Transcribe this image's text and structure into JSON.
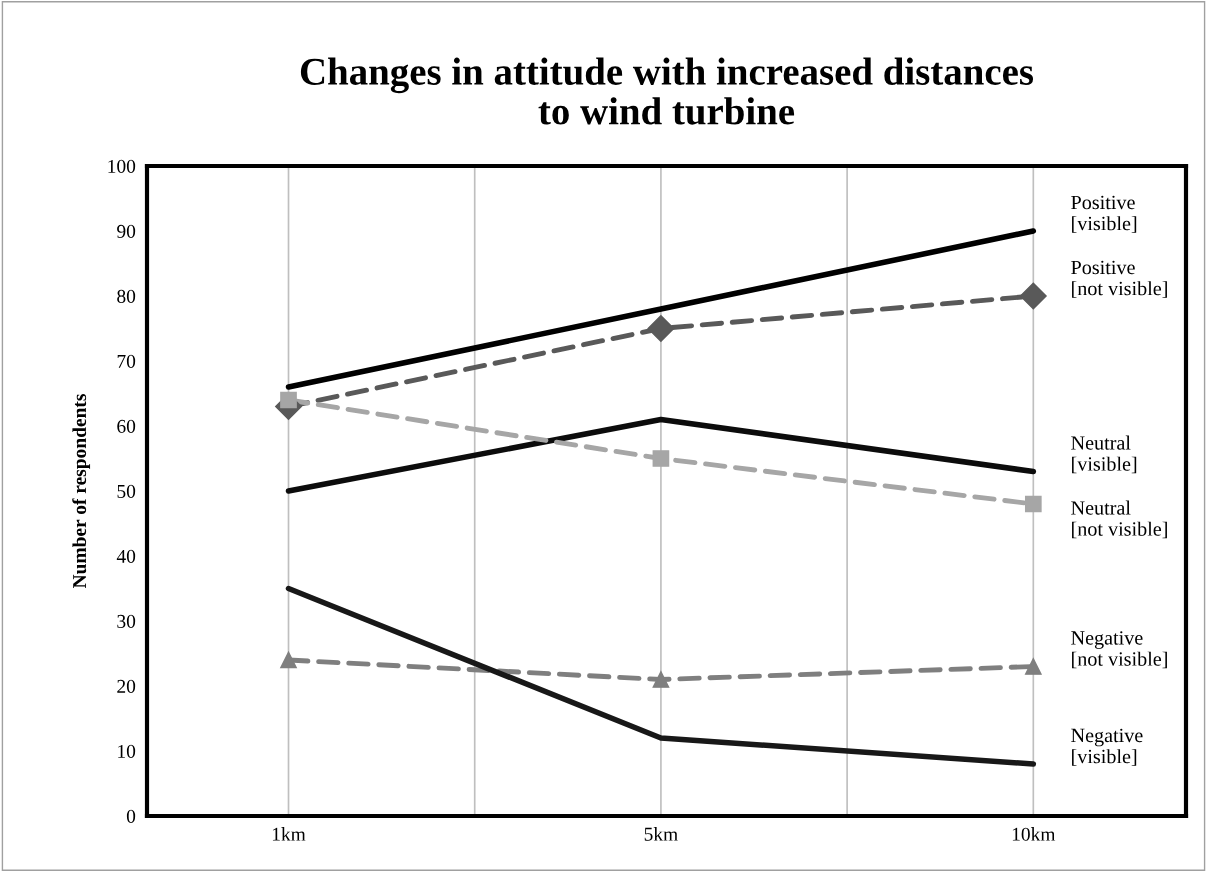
{
  "chart_data": {
    "type": "line",
    "title": "Changes in attitude with increased distances\nto wind turbine",
    "ylabel": "Number of respondents",
    "categories": [
      "1km",
      "5km",
      "10km"
    ],
    "series": [
      {
        "name": "Positive\n[visible]",
        "color": "#000000",
        "values": [
          66,
          78,
          90
        ],
        "marker": "none",
        "line_style": "solid"
      },
      {
        "name": "Positive\n[not visible]",
        "color": "#595959",
        "values": [
          63,
          75,
          80
        ],
        "marker": "diamond",
        "line_style": "dashed"
      },
      {
        "name": "Neutral\n[visible]",
        "color": "#0c0c0c",
        "values": [
          50,
          61,
          53
        ],
        "marker": "none",
        "line_style": "solid"
      },
      {
        "name": "Neutral\n[not visible]",
        "color": "#a6a6a6",
        "values": [
          64,
          55,
          48
        ],
        "marker": "square",
        "line_style": "dashed"
      },
      {
        "name": "Negative\n[not visible]",
        "color": "#7f7f7f",
        "values": [
          24,
          21,
          23
        ],
        "marker": "triangle",
        "line_style": "dashed"
      },
      {
        "name": "Negative\n[visible]",
        "color": "#181818",
        "values": [
          35,
          12,
          8
        ],
        "marker": "none",
        "line_style": "solid"
      }
    ],
    "ylim": [
      0,
      100
    ],
    "yticks": [
      0,
      10,
      20,
      30,
      40,
      50,
      60,
      70,
      80,
      90,
      100
    ],
    "grid": "x"
  }
}
